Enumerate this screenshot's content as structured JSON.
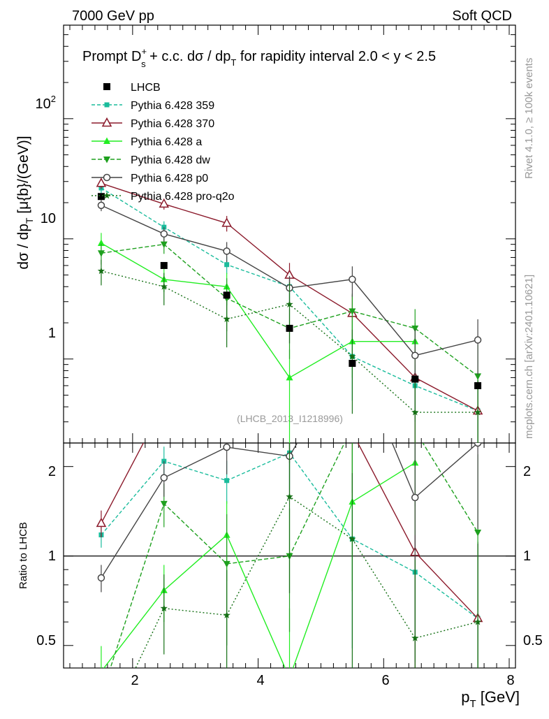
{
  "header": {
    "left": "7000 GeV pp",
    "right": "Soft QCD"
  },
  "title": {
    "prefix": "Prompt D",
    "sup": "+",
    "sub": "s",
    "middle": " + c.c.  dσ / dp",
    "sub2": "T",
    "suffix": " for rapidity interval 2.0 < y < 2.5"
  },
  "side_labels": {
    "rivet": "Rivet 4.1.0, ≥ 100k events",
    "mcplots": "mcplots.cern.ch [arXiv:2401.10621]"
  },
  "analysis_id": "(LHCB_2013_I1218996)",
  "ratio_ylabel": "Ratio to LHCB",
  "chart_data": {
    "type": "line",
    "title": "Prompt Ds+ + c.c. dσ/dpT for rapidity interval 2.0 < y < 2.5",
    "xlabel": "p_T [GeV]",
    "ylabel": "dσ / dp_T [μ{b}/(GeV)]",
    "xlim": [
      0.9,
      8.1
    ],
    "ylim": [
      0.2,
      600
    ],
    "yscale": "log",
    "ratio_ylim": [
      0.42,
      2.4
    ],
    "x_ticks": [
      "2",
      "4",
      "6",
      "8"
    ],
    "y_ticks": [
      "1",
      "10",
      "10^2"
    ],
    "ratio_y_ticks": [
      "0.5",
      "1",
      "2"
    ],
    "x": [
      1.5,
      2.5,
      3.5,
      4.5,
      5.5,
      6.5,
      7.5
    ],
    "data": {
      "name": "LHCB",
      "values": [
        22.5,
        6.0,
        3.4,
        1.8,
        0.92,
        0.68,
        0.6
      ]
    },
    "series": [
      {
        "name": "Pythia 6.428 359",
        "color": "#1abc9c",
        "dash": "5,3",
        "marker": "square",
        "values": [
          26.5,
          12.5,
          6.1,
          4.0,
          1.05,
          0.6,
          0.37
        ],
        "err": [
          2.5,
          1.5,
          1.0,
          1.0,
          0.6,
          0.3,
          0.3
        ]
      },
      {
        "name": "Pythia 6.428 370",
        "color": "#8b1a2b",
        "dash": "",
        "marker": "triangle-open",
        "values": [
          29.0,
          19.5,
          13.5,
          5.0,
          2.4,
          0.7,
          0.37
        ],
        "err": [
          3.0,
          2.0,
          2.0,
          1.3,
          1.0,
          0.5,
          0.3
        ]
      },
      {
        "name": "Pythia 6.428 a",
        "color": "#22ee22",
        "dash": "",
        "marker": "triangle",
        "values": [
          9.2,
          4.6,
          4.0,
          0.7,
          1.4,
          1.4,
          null
        ],
        "err": [
          2.0,
          1.0,
          1.2,
          0.5,
          0.7,
          0.6,
          0
        ]
      },
      {
        "name": "Pythia 6.428 dw",
        "color": "#1ea01e",
        "dash": "6,3",
        "marker": "triangle-down",
        "values": [
          7.6,
          9.0,
          3.2,
          1.8,
          2.5,
          1.8,
          0.72
        ],
        "err": [
          1.5,
          1.5,
          1.5,
          0.8,
          1.0,
          0.8,
          0.6
        ]
      },
      {
        "name": "Pythia 6.428 p0",
        "color": "#444444",
        "dash": "",
        "marker": "circle-open",
        "values": [
          19.0,
          11.0,
          7.9,
          3.9,
          4.6,
          1.07,
          1.44
        ],
        "err": [
          2.0,
          1.5,
          1.5,
          1.0,
          1.3,
          0.7,
          0.7
        ]
      },
      {
        "name": "Pythia 6.428 pro-q2o",
        "color": "#157015",
        "dash": "2,3",
        "marker": "star",
        "values": [
          5.4,
          4.0,
          2.15,
          2.85,
          1.05,
          0.36,
          0.36
        ],
        "err": [
          1.3,
          1.2,
          0.9,
          1.5,
          0.7,
          0.3,
          0.3
        ]
      }
    ],
    "legend_position": "top-left"
  }
}
